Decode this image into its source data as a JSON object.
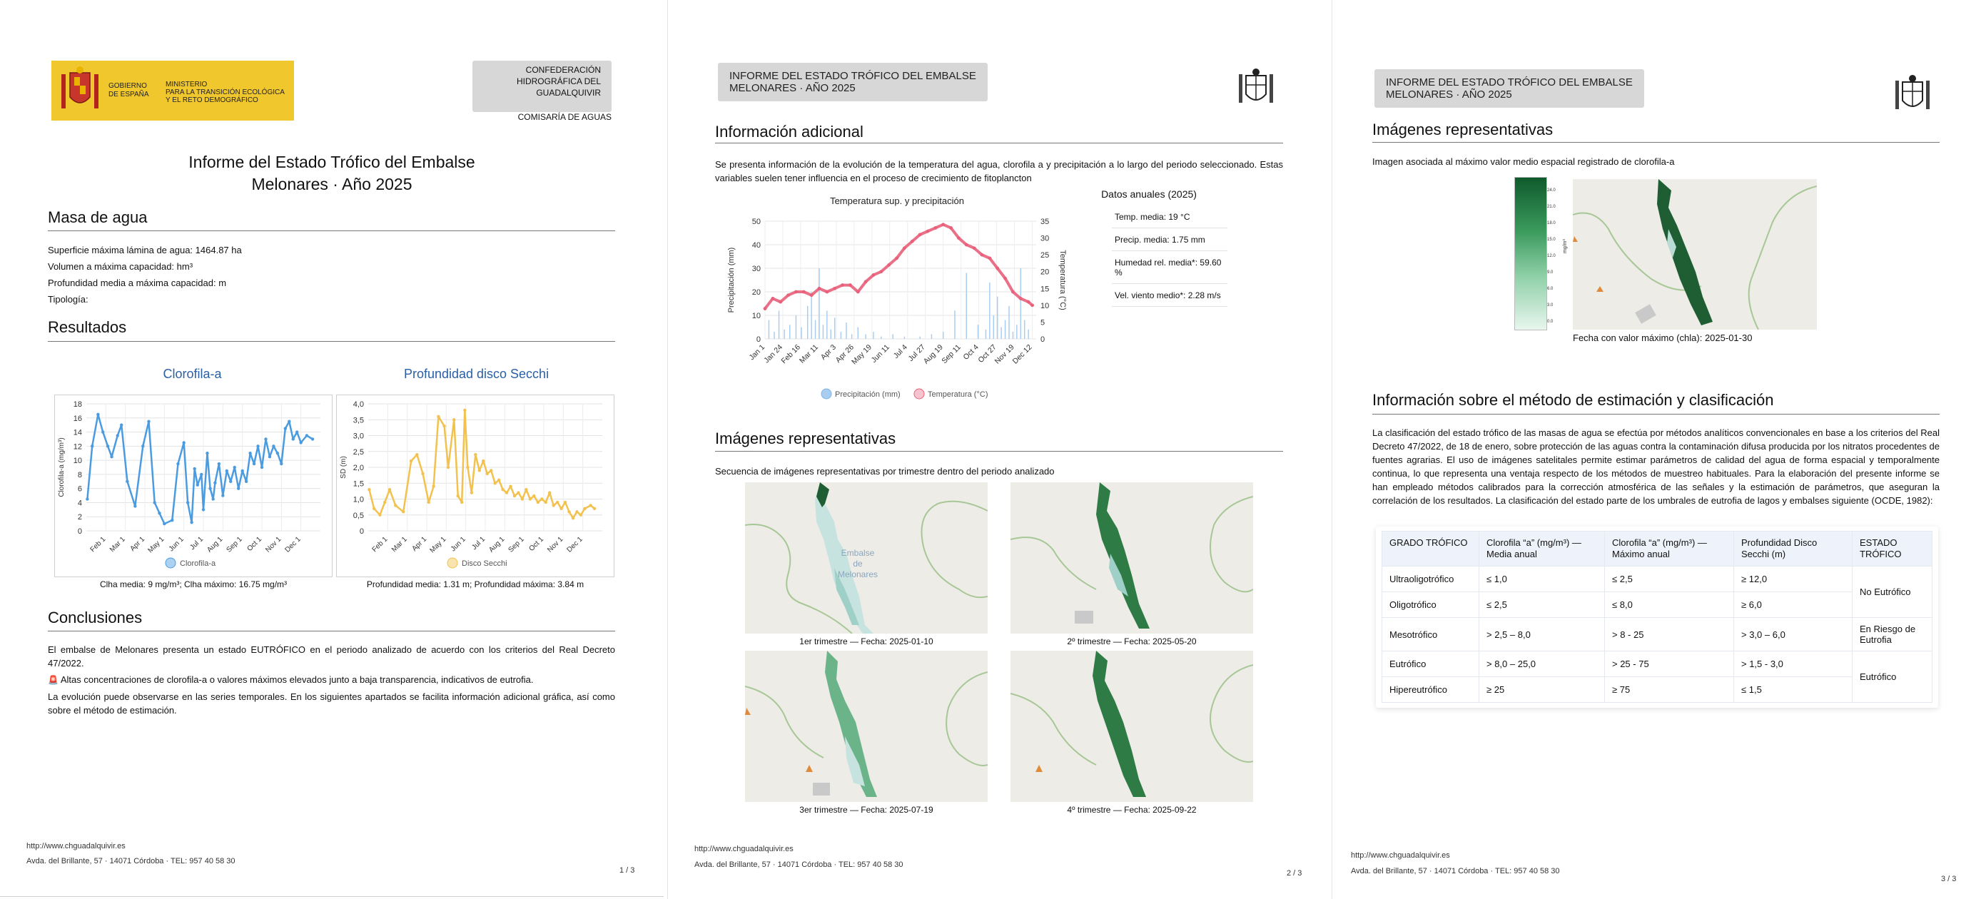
{
  "page1": {
    "gov_line1": "GOBIERNO",
    "gov_line2": "DE ESPAÑA",
    "ministry_line1": "MINISTERIO",
    "ministry_line2": "PARA LA TRANSICIÓN ECOLÓGICA",
    "ministry_line3": "Y EL RETO DEMOGRÁFICO",
    "chg_line1": "CONFEDERACIÓN",
    "chg_line2": "HIDROGRÁFICA DEL",
    "chg_line3": "GUADALQUIVIR",
    "comisaria": "COMISARÍA DE AGUAS",
    "title_line1": "Informe del Estado Trófico del Embalse",
    "title_line2": "Melonares · Año 2025",
    "masa_heading": "Masa de agua",
    "masa_lines": [
      "Superficie máxima lámina de agua: 1464.87 ha",
      "Volumen a máxima capacidad: hm³",
      "Profundidad media a máxima capacidad: m",
      "Tipología:"
    ],
    "resultados_heading": "Resultados",
    "clorofila_title": "Clorofila-a",
    "secchi_title": "Profundidad disco Secchi",
    "clorofila_caption": "Clha media: 9 mg/m³; Clha máximo: 16.75 mg/m³",
    "secchi_caption": "Profundidad media: 1.31 m; Profundidad máxima: 3.84 m",
    "conclusiones_heading": "Conclusiones",
    "conclusiones_p1": "El embalse de Melonares presenta un estado EUTRÓFICO en el periodo analizado de acuerdo con los criterios del Real Decreto 47/2022.",
    "conclusiones_alert_icon": "🚨",
    "conclusiones_p2": "Altas concentraciones de clorofila-a o valores máximos elevados junto a baja transparencia, indicativos de eutrofia.",
    "conclusiones_p3": "La evolución puede observarse en las series temporales. En los siguientes apartados se facilita información adicional gráfica, así como sobre el método de estimación.",
    "footer_url": "http://www.chguadalquivir.es",
    "footer_addr": "Avda. del Brillante, 57 · 14071 Córdoba · TEL: 957 40 58 30",
    "page_num": "1 / 3"
  },
  "page2": {
    "header_line1": "INFORME DEL ESTADO TRÓFICO DEL EMBALSE",
    "header_line2": "MELONARES · AÑO 2025",
    "info_heading": "Información adicional",
    "info_text": "Se presenta información de la evolución de la temperatura del agua, clorofila a y precipitación a lo largo del periodo seleccionado. Estas variables suelen tener influencia en el proceso de crecimiento de fitoplancton",
    "datos_title": "Datos anuales (2025)",
    "datos_rows": [
      "Temp. media: 19 °C",
      "Precip. media: 1.75 mm",
      "Humedad rel. media*: 59.60 %",
      "Vel. viento medio*: 2.28 m/s"
    ],
    "imagenes_heading": "Imágenes representativas",
    "imagenes_text": "Secuencia de imágenes representativas por trimestre dentro del periodo analizado",
    "map_captions": [
      "1er trimestre — Fecha: 2025-01-10",
      "2º trimestre — Fecha: 2025-05-20",
      "3er trimestre — Fecha: 2025-07-19",
      "4º trimestre — Fecha: 2025-09-22"
    ],
    "map_label_1": "Embalse",
    "map_label_2": "de",
    "map_label_3": "Melonares",
    "footer_url": "http://www.chguadalquivir.es",
    "footer_addr": "Avda. del Brillante, 57 · 14071 Córdoba · TEL: 957 40 58 30",
    "page_num": "2 / 3"
  },
  "page3": {
    "header_line1": "INFORME DEL ESTADO TRÓFICO DEL EMBALSE",
    "header_line2": "MELONARES · AÑO 2025",
    "imagenes_heading": "Imágenes representativas",
    "imagen_text": "Imagen asociada al máximo valor medio espacial registrado de clorofila-a",
    "colorbar_ticks": [
      "24.0",
      "21.0",
      "18.0",
      "15.0",
      "12.0",
      "9.0",
      "6.0",
      "3.0",
      "0.0"
    ],
    "colorbar_label": "mg/m³",
    "imagen_caption": "Fecha con valor máximo (chla): 2025-01-30",
    "metodo_heading": "Información sobre el método de estimación y clasificación",
    "metodo_text": "La clasificación del estado trófico de las masas de agua se efectúa por métodos analíticos convencionales en base a los criterios del Real Decreto 47/2022, de 18 de enero, sobre protección de las aguas contra la contaminación difusa producida por los nitratos procedentes de fuentes agrarias. El uso de imágenes satelitales permite estimar parámetros de calidad del agua de forma espacial y temporalmente continua, lo que representa una ventaja respecto de los métodos de muestreo habituales. Para la elaboración del presente informe se han empleado métodos calibrados para la corrección atmosférica de las señales y la estimación de parámetros, que aseguran la correlación de los resultados. La clasificación del estado parte de los umbrales de eutrofia de lagos y embalses siguiente (OCDE, 1982):",
    "table": {
      "headers": [
        "GRADO TRÓFICO",
        "Clorofila “a” (mg/m³) — Media anual",
        "Clorofila “a” (mg/m³) — Máximo anual",
        "Profundidad Disco Secchi (m)",
        "ESTADO TRÓFICO"
      ],
      "rows": [
        [
          "Ultraoligotrófico",
          "≤ 1,0",
          "≤ 2,5",
          "≥ 12,0"
        ],
        [
          "Oligotrófico",
          "≤ 2,5",
          "≤ 8,0",
          "≥ 6,0"
        ],
        [
          "Mesotrófico",
          "> 2,5 – 8,0",
          "> 8 - 25",
          "> 3,0 – 6,0"
        ],
        [
          "Eutrófico",
          "> 8,0 – 25,0",
          "> 25 - 75",
          "> 1,5 - 3,0"
        ],
        [
          "Hipereutrófico",
          "≥ 25",
          "≥ 75",
          "≤ 1,5"
        ]
      ],
      "estado_no": "No Eutrófico",
      "estado_riesgo": "En Riesgo de Eutrofia",
      "estado_eu": "Eutrófico"
    },
    "footer_url": "http://www.chguadalquivir.es",
    "footer_addr": "Avda. del Brillante, 57 · 14071 Córdoba · TEL: 957 40 58 30",
    "page_num": "3 / 3"
  },
  "colors": {
    "chl_blue": "#4a9be0",
    "secchi_yellow": "#f2c14e",
    "temp_red": "#e8607a",
    "precip_blue": "#a9cdf0",
    "map_green_dark": "#1e5e32",
    "gov_yellow": "#f1c72e"
  },
  "chart_data": [
    {
      "type": "line",
      "title": "Clorofila-a",
      "ylabel": "Clorofila-a (mg/m³)",
      "ylim": [
        0,
        18
      ],
      "yticks": [
        "0",
        "2",
        "4",
        "6",
        "8",
        "10",
        "12",
        "14",
        "16",
        "18"
      ],
      "xticks": [
        "Feb 1",
        "Mar 1",
        "Apr 1",
        "May 1",
        "Jun 1",
        "Jul 1",
        "Aug 1",
        "Sep 1",
        "Oct 1",
        "Nov 1",
        "Dec 1"
      ],
      "series": [
        {
          "name": "Clorofila-a",
          "x": [
            0.05,
            0.3,
            0.6,
            0.85,
            1.1,
            1.3,
            1.6,
            1.8,
            2.1,
            2.5,
            2.9,
            3.2,
            3.5,
            3.75,
            4.0,
            4.4,
            4.7,
            5.0,
            5.2,
            5.4,
            5.55,
            5.7,
            5.9,
            6.0,
            6.2,
            6.35,
            6.5,
            6.6,
            6.8,
            7.0,
            7.2,
            7.4,
            7.6,
            7.8,
            8.0,
            8.2,
            8.4,
            8.6,
            8.8,
            9.0,
            9.2,
            9.4,
            9.6,
            9.8,
            10.0,
            10.2,
            10.4,
            10.6,
            10.8,
            11.0,
            11.3,
            11.6
          ],
          "y": [
            4.5,
            12,
            16.5,
            14,
            12,
            10.5,
            13.5,
            15,
            7,
            3.5,
            12,
            15.5,
            4,
            2.5,
            1,
            1.5,
            9.5,
            12.5,
            4,
            1.2,
            8.8,
            6.5,
            8,
            3,
            11,
            6,
            4.5,
            6.8,
            9.5,
            5,
            8.5,
            7,
            9,
            6,
            8.5,
            7,
            11,
            9.5,
            12,
            9,
            13,
            10.5,
            12,
            11,
            9.5,
            14.5,
            15.5,
            13,
            14,
            12.5,
            13.5,
            13
          ]
        }
      ]
    },
    {
      "type": "line",
      "title": "Profundidad disco Secchi",
      "ylabel": "SD (m)",
      "ylim": [
        0,
        4
      ],
      "yticks": [
        "0",
        "0,5",
        "1,0",
        "1,5",
        "2,0",
        "2,5",
        "3,0",
        "3,5",
        "4,0"
      ],
      "xticks": [
        "Feb 1",
        "Mar 1",
        "Apr 1",
        "May 1",
        "Jun 1",
        "Jul 1",
        "Aug 1",
        "Sep 1",
        "Oct 1",
        "Nov 1",
        "Dec 1"
      ],
      "series": [
        {
          "name": "Disco Secchi",
          "x": [
            0.05,
            0.3,
            0.6,
            0.85,
            1.1,
            1.4,
            1.8,
            2.2,
            2.5,
            2.8,
            3.1,
            3.35,
            3.6,
            3.9,
            4.1,
            4.4,
            4.6,
            4.8,
            4.95,
            5.1,
            5.3,
            5.5,
            5.7,
            5.9,
            6.1,
            6.3,
            6.5,
            6.7,
            6.9,
            7.1,
            7.3,
            7.5,
            7.7,
            7.9,
            8.1,
            8.3,
            8.5,
            8.7,
            8.9,
            9.1,
            9.3,
            9.5,
            9.7,
            9.9,
            10.1,
            10.3,
            10.5,
            10.7,
            10.9,
            11.1,
            11.4,
            11.6
          ],
          "y": [
            1.3,
            0.7,
            0.5,
            0.9,
            1.3,
            0.8,
            0.6,
            2.2,
            2.4,
            1.8,
            0.9,
            1.4,
            3.6,
            3.3,
            2.0,
            3.5,
            1.1,
            0.9,
            3.8,
            2.0,
            1.2,
            2.4,
            1.9,
            2.2,
            1.8,
            1.9,
            1.5,
            1.6,
            1.3,
            1.2,
            1.4,
            1.1,
            1.2,
            1.0,
            1.3,
            1.0,
            1.1,
            0.9,
            1.0,
            0.9,
            1.2,
            0.8,
            0.9,
            0.7,
            0.9,
            0.6,
            0.4,
            0.6,
            0.5,
            0.7,
            0.8,
            0.7
          ]
        }
      ]
    },
    {
      "type": "line",
      "title": "Temperatura sup. y precipitación",
      "ylabel": "Precipitación (mm)",
      "y2label": "Temperatura (°C)",
      "ylim": [
        0,
        50
      ],
      "y2lim": [
        0,
        35
      ],
      "yticks": [
        "0",
        "10",
        "20",
        "30",
        "40",
        "50"
      ],
      "y2ticks": [
        "0",
        "5",
        "10",
        "15",
        "20",
        "25",
        "30",
        "35"
      ],
      "xticks": [
        "Jan 1",
        "Jan 24",
        "Feb 16",
        "Mar 11",
        "Apr 3",
        "Apr 26",
        "May 19",
        "Jun 11",
        "Jul 4",
        "Jul 27",
        "Aug 19",
        "Sep 11",
        "Oct 4",
        "Oct 27",
        "Nov 19",
        "Dec 12"
      ],
      "series": [
        {
          "name": "Temperatura (°C)",
          "x": [
            0,
            10,
            20,
            30,
            40,
            50,
            60,
            70,
            80,
            90,
            100,
            110,
            120,
            130,
            140,
            150,
            160,
            170,
            180,
            190,
            200,
            210,
            220,
            230,
            240,
            250,
            260,
            270,
            280,
            290,
            300,
            310,
            320,
            330,
            340,
            345
          ],
          "y": [
            9,
            12,
            11,
            13,
            14,
            14,
            13,
            15,
            14,
            15,
            16,
            16,
            14,
            17,
            19,
            20,
            22,
            24,
            27,
            29,
            31,
            32,
            33,
            34,
            33,
            30,
            28,
            27,
            25,
            24,
            21,
            18,
            14,
            12,
            11,
            10
          ]
        },
        {
          "name": "Precipitación (mm)",
          "x": [
            5,
            12,
            18,
            25,
            32,
            40,
            47,
            55,
            60,
            65,
            70,
            75,
            80,
            85,
            90,
            98,
            105,
            112,
            120,
            130,
            140,
            150,
            165,
            180,
            200,
            215,
            230,
            245,
            260,
            275,
            285,
            290,
            295,
            300,
            305,
            310,
            315,
            320,
            325,
            330,
            335,
            340
          ],
          "y": [
            8,
            3,
            12,
            4,
            6,
            10,
            5,
            14,
            20,
            8,
            30,
            6,
            12,
            4,
            9,
            3,
            7,
            2,
            5,
            2,
            3,
            1,
            2,
            1,
            1,
            2,
            3,
            12,
            28,
            6,
            4,
            24,
            10,
            18,
            5,
            8,
            14,
            3,
            6,
            30,
            8,
            4
          ]
        }
      ]
    }
  ]
}
